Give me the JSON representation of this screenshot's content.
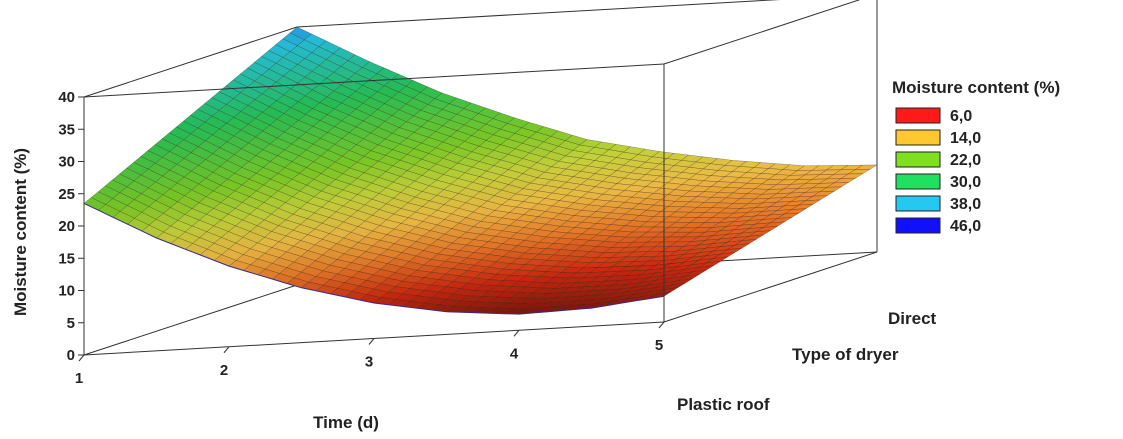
{
  "chart_data": {
    "type": "surface",
    "xlabel": "Time (d)",
    "ylabel": "Type of dryer",
    "zlabel": "Moisture content (%)",
    "x_ticks": [
      "1",
      "2",
      "3",
      "4",
      "5"
    ],
    "x_range": [
      1,
      5
    ],
    "y_categories": [
      "Plastic roof",
      "Direct"
    ],
    "z_ticks": [
      "0",
      "5",
      "10",
      "15",
      "20",
      "25",
      "30",
      "35",
      "40"
    ],
    "z_range": [
      0,
      40
    ],
    "surface": {
      "x": [
        1.0,
        1.5,
        2.0,
        2.5,
        3.0,
        3.5,
        4.0,
        4.5,
        5.0
      ],
      "plastic_roof": [
        23.5,
        17.5,
        12.5,
        8.5,
        5.5,
        3.5,
        2.5,
        2.8,
        4.0
      ],
      "direct": [
        40.0,
        34.0,
        28.5,
        24.0,
        20.0,
        17.5,
        15.5,
        14.0,
        13.5
      ]
    },
    "legend": {
      "title": "Moisture content (%)",
      "placement": "right",
      "entries": [
        {
          "label": "6,0",
          "color": "#ff1a1a"
        },
        {
          "label": "14,0",
          "color": "#ffc830"
        },
        {
          "label": "22,0",
          "color": "#7fe020"
        },
        {
          "label": "30,0",
          "color": "#20e060"
        },
        {
          "label": "38,0",
          "color": "#25c8f0"
        },
        {
          "label": "46,0",
          "color": "#1010ff"
        }
      ]
    }
  }
}
